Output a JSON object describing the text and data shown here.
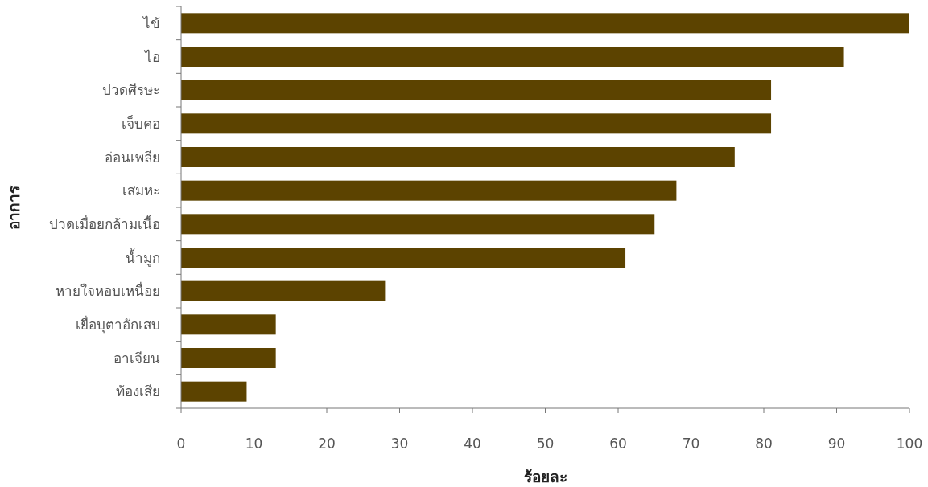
{
  "chart_data": {
    "type": "bar",
    "orientation": "horizontal",
    "xlabel": "ร้อยละ",
    "ylabel": "อาการ",
    "categories": [
      "ไข้",
      "ไอ",
      "ปวดศีรษะ",
      "เจ็บคอ",
      "อ่อนเพลีย",
      "เสมหะ",
      "ปวดเมื่อยกล้ามเนื้อ",
      "น้ำมูก",
      "หายใจหอบเหนื่อย",
      "เยื่อบุตาอักเสบ",
      "อาเจียน",
      "ท้องเสีย"
    ],
    "values": [
      100,
      91,
      81,
      81,
      76,
      68,
      65,
      61,
      28,
      13,
      13,
      9
    ],
    "color": "#5c4300",
    "xlim": [
      0,
      100
    ],
    "xticks": [
      0,
      10,
      20,
      30,
      40,
      50,
      60,
      70,
      80,
      90,
      100
    ]
  }
}
